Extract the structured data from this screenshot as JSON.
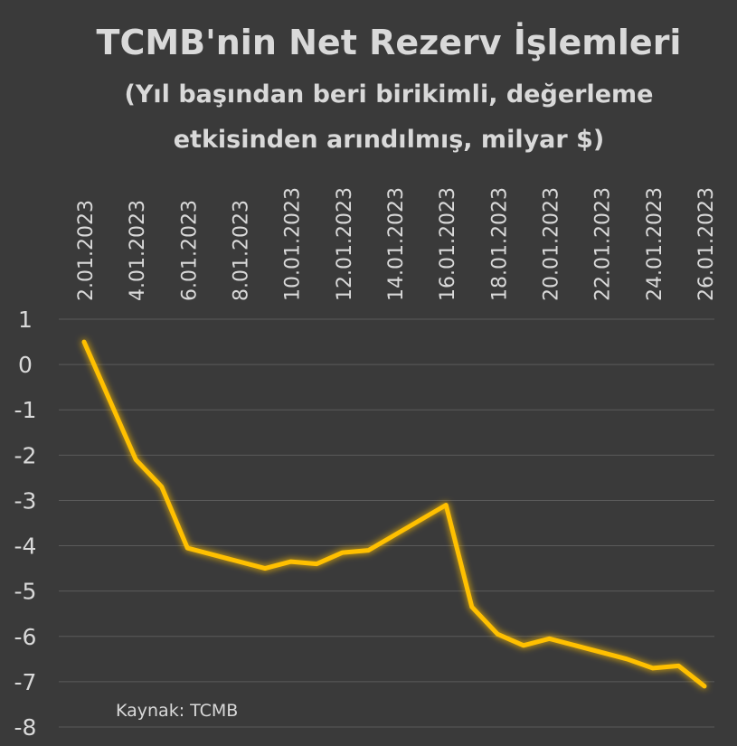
{
  "chart_data": {
    "type": "line",
    "title": "TCMB'nin Net Rezerv İşlemleri",
    "subtitle_lines": [
      "(Yıl başından beri birikimli, değerleme",
      "etkisinden arındılmış, milyar $)"
    ],
    "xlabel": "",
    "ylabel": "",
    "x_tick_labels": [
      "2.01.2023",
      "4.01.2023",
      "6.01.2023",
      "8.01.2023",
      "10.01.2023",
      "12.01.2023",
      "14.01.2023",
      "16.01.2023",
      "18.01.2023",
      "20.01.2023",
      "22.01.2023",
      "24.01.2023",
      "26.01.2023"
    ],
    "x_day_range": [
      2,
      26
    ],
    "y_ticks": [
      1,
      0,
      -1,
      -2,
      -3,
      -4,
      -5,
      -6,
      -7,
      -8
    ],
    "ylim": [
      -8,
      1
    ],
    "grid": true,
    "series": [
      {
        "name": "",
        "color": "#FFC000",
        "points": [
          {
            "x": "2.01.2023",
            "y": 0.5
          },
          {
            "x": "3.01.2023",
            "y": -0.8
          },
          {
            "x": "4.01.2023",
            "y": -2.1
          },
          {
            "x": "5.01.2023",
            "y": -2.7
          },
          {
            "x": "6.01.2023",
            "y": -4.05
          },
          {
            "x": "9.01.2023",
            "y": -4.5
          },
          {
            "x": "10.01.2023",
            "y": -4.35
          },
          {
            "x": "11.01.2023",
            "y": -4.4
          },
          {
            "x": "12.01.2023",
            "y": -4.15
          },
          {
            "x": "13.01.2023",
            "y": -4.1
          },
          {
            "x": "16.01.2023",
            "y": -3.1
          },
          {
            "x": "17.01.2023",
            "y": -5.35
          },
          {
            "x": "18.01.2023",
            "y": -5.95
          },
          {
            "x": "19.01.2023",
            "y": -6.2
          },
          {
            "x": "20.01.2023",
            "y": -6.05
          },
          {
            "x": "23.01.2023",
            "y": -6.5
          },
          {
            "x": "24.01.2023",
            "y": -6.7
          },
          {
            "x": "25.01.2023",
            "y": -6.65
          },
          {
            "x": "26.01.2023",
            "y": -7.1
          }
        ]
      }
    ],
    "source_note": "Kaynak: TCMB"
  },
  "colors": {
    "background": "#3a3a3a",
    "text": "#d9d9d9",
    "grid": "#5a5a5a",
    "line": "#FFC000"
  }
}
